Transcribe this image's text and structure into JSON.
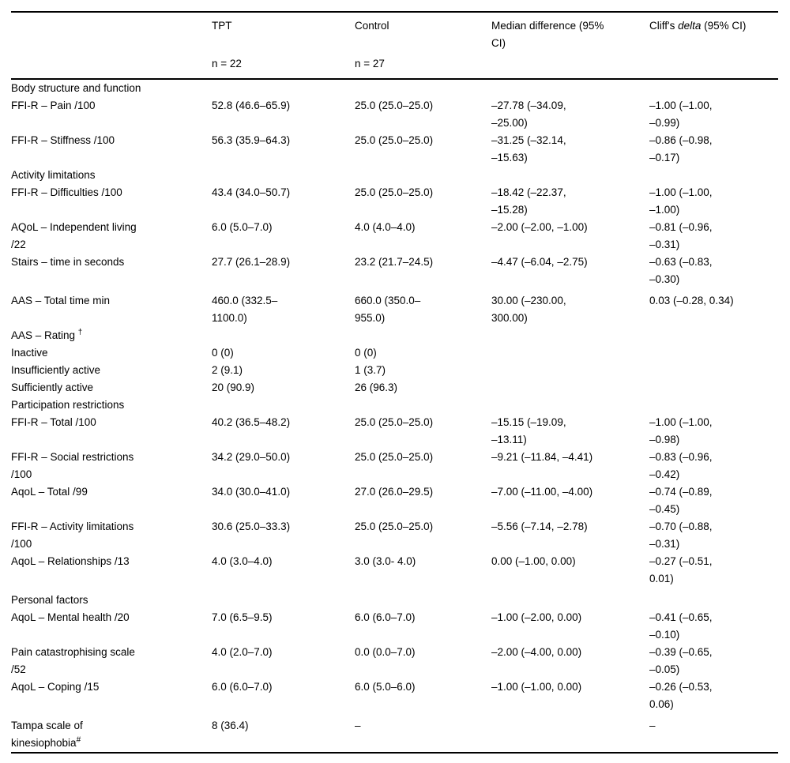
{
  "page": {
    "background": "#ffffff",
    "text_color": "#000000",
    "rule_color": "#000000"
  },
  "table": {
    "header": {
      "col_label": "",
      "col_tpt": "TPT",
      "col_control": "Control",
      "col_median": "Median difference (95%\nCI)",
      "cliffs": {
        "prefix": "Cliff's ",
        "italic": "delta",
        "suffix": " (95% CI)"
      },
      "n_tpt": "n = 22",
      "n_control": "n = 27"
    },
    "rows": [
      {
        "type": "section",
        "label": "Body structure and function"
      },
      {
        "type": "data",
        "label": "FFI-R – Pain /100",
        "cells": [
          "52.8 (46.6–65.9)",
          "25.0 (25.0–25.0)",
          "–27.78 (–34.09,\n–25.00)",
          "–1.00 (–1.00,\n–0.99)"
        ]
      },
      {
        "type": "data",
        "label": "FFI-R – Stiffness /100",
        "cells": [
          "56.3 (35.9–64.3)",
          "25.0 (25.0–25.0)",
          "–31.25 (–32.14,\n–15.63)",
          "–0.86 (–0.98,\n–0.17)"
        ]
      },
      {
        "type": "section",
        "label": "Activity limitations"
      },
      {
        "type": "data",
        "label": "FFI-R – Difficulties /100",
        "cells": [
          "43.4 (34.0–50.7)",
          "25.0 (25.0–25.0)",
          "–18.42 (–22.37,\n–15.28)",
          "–1.00 (–1.00,\n–1.00)"
        ]
      },
      {
        "type": "data",
        "label": "AQoL – Independent living\n/22",
        "cells": [
          "6.0 (5.0–7.0)",
          "4.0 (4.0–4.0)",
          "–2.00 (–2.00, –1.00)",
          "–0.81 (–0.96,\n–0.31)"
        ]
      },
      {
        "type": "data",
        "label": "Stairs – time in seconds",
        "cells": [
          "27.7 (26.1–28.9)",
          "23.2 (21.7–24.5)",
          "–4.47 (–6.04, –2.75)",
          "–0.63 (–0.83,\n–0.30)"
        ]
      },
      {
        "type": "data",
        "label": "AAS – Total time min",
        "gap_before": true,
        "cells": [
          "460.0 (332.5–\n1100.0)",
          "660.0 (350.0–\n955.0)",
          "30.00 (–230.00,\n300.00)",
          "0.03 (–0.28, 0.34)"
        ]
      },
      {
        "type": "data",
        "label": "AAS – Rating ",
        "label_sup": "†",
        "cells": [
          "",
          "",
          "",
          ""
        ]
      },
      {
        "type": "data",
        "label": "Inactive",
        "cells": [
          "0 (0)",
          "0 (0)",
          "",
          ""
        ]
      },
      {
        "type": "data",
        "label": "Insufficiently active",
        "cells": [
          "2 (9.1)",
          "1 (3.7)",
          "",
          ""
        ]
      },
      {
        "type": "data",
        "label": "Sufficiently active",
        "cells": [
          "20 (90.9)",
          "26 (96.3)",
          "",
          ""
        ]
      },
      {
        "type": "section",
        "label": "Participation restrictions"
      },
      {
        "type": "data",
        "label": "FFI-R – Total /100",
        "cells": [
          "40.2 (36.5–48.2)",
          "25.0 (25.0–25.0)",
          "–15.15 (–19.09,\n–13.11)",
          "–1.00 (–1.00,\n–0.98)"
        ]
      },
      {
        "type": "data",
        "label": "FFI-R – Social restrictions\n/100",
        "cells": [
          "34.2 (29.0–50.0)",
          "25.0 (25.0–25.0)",
          "–9.21 (–11.84, –4.41)",
          "–0.83 (–0.96,\n–0.42)"
        ]
      },
      {
        "type": "data",
        "label": "AqoL – Total /99",
        "cells": [
          "34.0 (30.0–41.0)",
          "27.0 (26.0–29.5)",
          "–7.00 (–11.00, –4.00)",
          "–0.74 (–0.89,\n–0.45)"
        ]
      },
      {
        "type": "data",
        "label": "FFI-R – Activity limitations\n/100",
        "cells": [
          "30.6 (25.0–33.3)",
          "25.0 (25.0–25.0)",
          "–5.56 (–7.14, –2.78)",
          "–0.70 (–0.88,\n–0.31)"
        ]
      },
      {
        "type": "data",
        "label": "AqoL – Relationships /13",
        "cells": [
          "4.0 (3.0–4.0)",
          "3.0 (3.0- 4.0)",
          "0.00 (–1.00, 0.00)",
          "–0.27 (–0.51,\n0.01)"
        ]
      },
      {
        "type": "section",
        "label": "Personal factors",
        "gap_before": true
      },
      {
        "type": "data",
        "label": "AqoL – Mental health /20",
        "cells": [
          "7.0 (6.5–9.5)",
          "6.0 (6.0–7.0)",
          "–1.00 (–2.00, 0.00)",
          "–0.41 (–0.65,\n–0.10)"
        ]
      },
      {
        "type": "data",
        "label": "Pain catastrophising scale\n/52",
        "cells": [
          "4.0 (2.0–7.0)",
          "0.0 (0.0–7.0)",
          "–2.00 (–4.00, 0.00)",
          "–0.39 (–0.65,\n–0.05)"
        ]
      },
      {
        "type": "data",
        "label": "AqoL – Coping /15",
        "cells": [
          "6.0 (6.0–7.0)",
          "6.0 (5.0–6.0)",
          "–1.00 (–1.00, 0.00)",
          "–0.26 (–0.53,\n0.06)"
        ]
      },
      {
        "type": "data",
        "label": "Tampa scale of\nkinesiophobia",
        "label_sup": "#",
        "gap_before": true,
        "cells": [
          "8 (36.4)",
          "–",
          "",
          "–"
        ]
      }
    ]
  }
}
